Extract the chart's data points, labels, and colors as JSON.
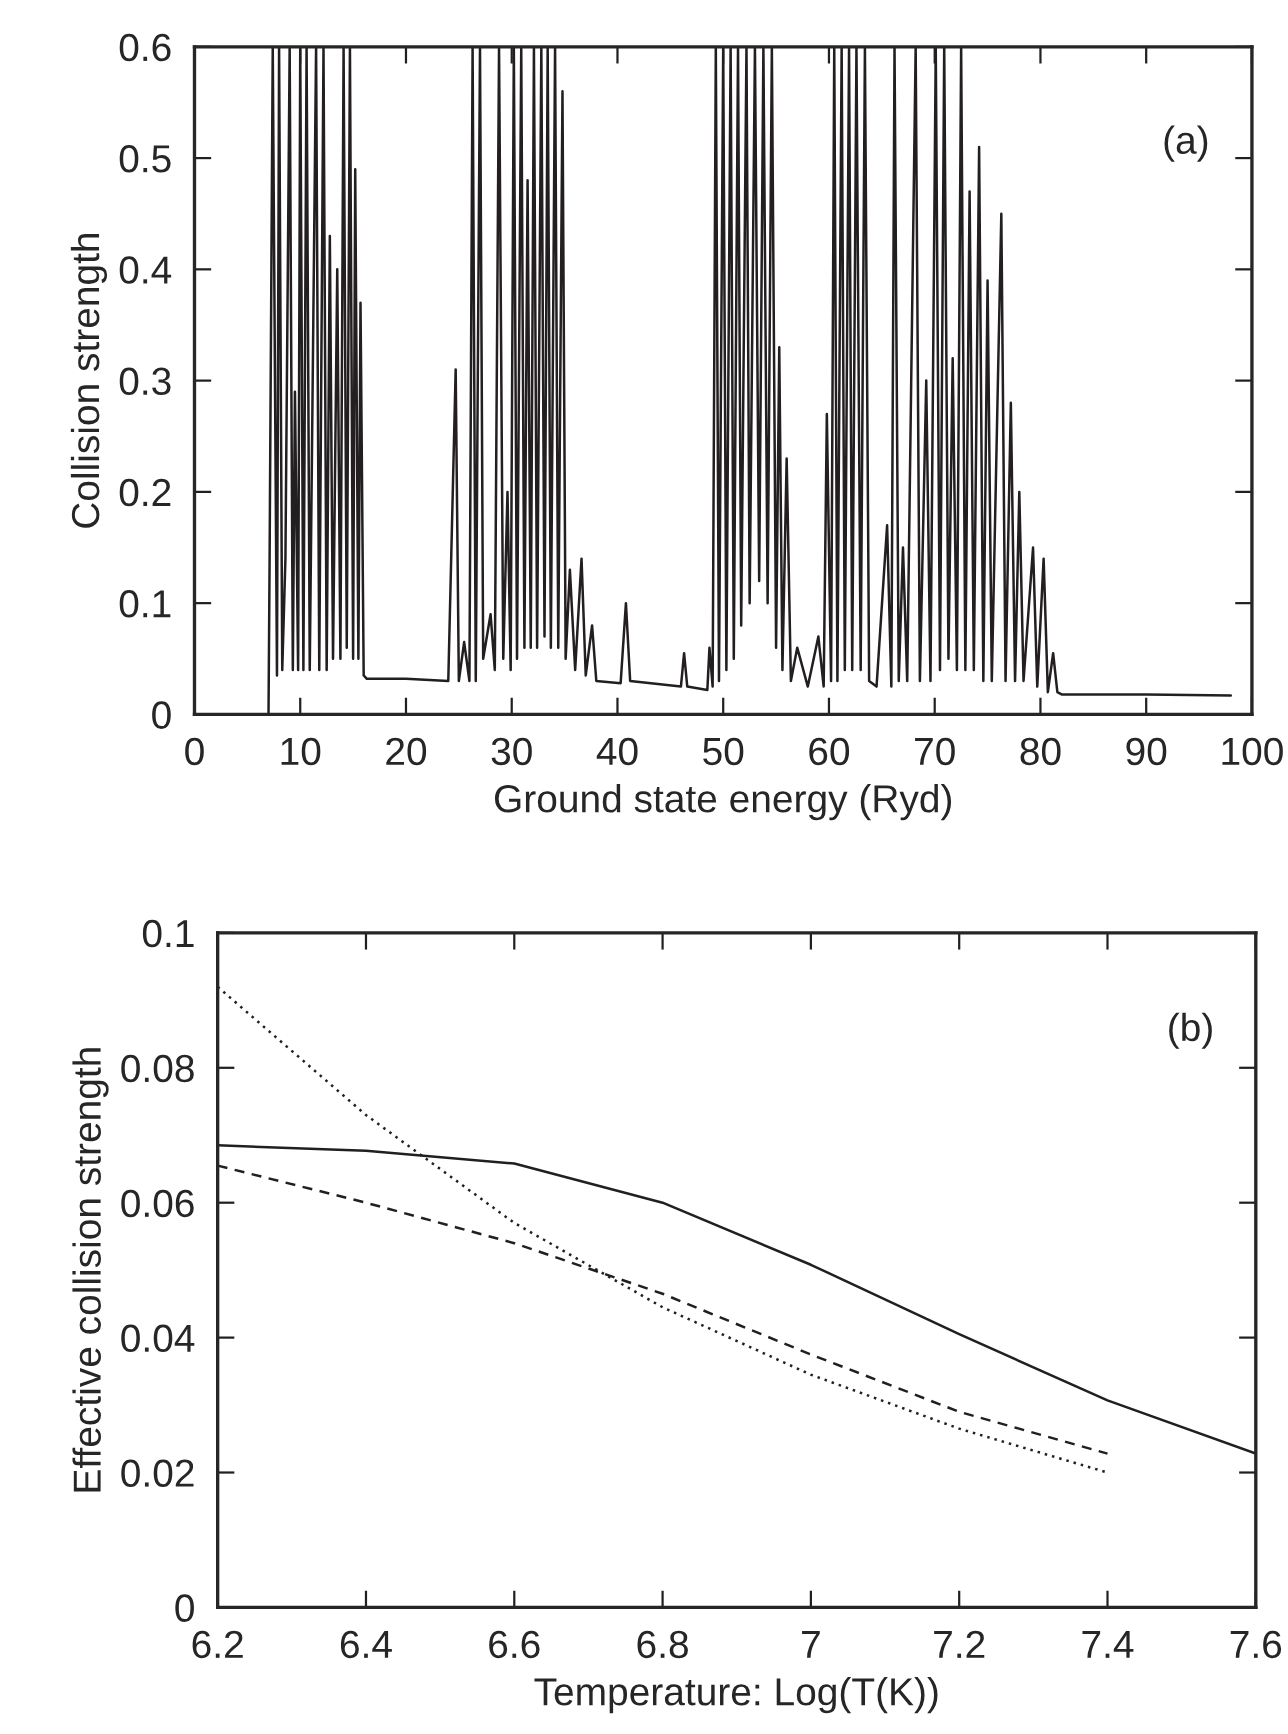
{
  "chart_data": [
    {
      "type": "line",
      "xlabel": "Ground state energy (Ryd)",
      "ylabel": "Collision strength",
      "annotations": [
        "(a)"
      ],
      "xlim": [
        0,
        100
      ],
      "ylim": [
        0,
        0.6
      ],
      "xticks": [
        0,
        10,
        20,
        30,
        40,
        50,
        60,
        70,
        80,
        90,
        100
      ],
      "yticks": [
        0,
        0.1,
        0.2,
        0.3,
        0.4,
        0.5,
        0.6
      ],
      "series": [
        {
          "color": "#231f20",
          "line_style": "solid",
          "x": [
            7.0,
            7.1,
            7.4,
            7.8,
            8.0,
            8.3,
            8.6,
            9.0,
            9.3,
            9.5,
            9.8,
            10.0,
            10.3,
            10.6,
            10.9,
            11.5,
            11.8,
            12.2,
            12.5,
            12.8,
            13.1,
            13.5,
            13.8,
            14.1,
            14.4,
            14.7,
            15.0,
            15.2,
            15.5,
            15.7,
            16.0,
            16.3,
            20,
            24,
            24.7,
            25,
            25.5,
            26,
            26.3,
            26.6,
            27,
            27.3,
            28,
            28.4,
            28.8,
            29.2,
            29.6,
            29.9,
            30.2,
            30.5,
            30.9,
            31.2,
            31.5,
            31.8,
            32.1,
            32.4,
            32.8,
            33.1,
            33.4,
            33.7,
            34.1,
            34.4,
            34.8,
            35.1,
            35.5,
            36,
            36.6,
            37,
            37.6,
            38,
            40.3,
            40.8,
            41.2,
            46,
            46.3,
            46.6,
            48.5,
            48.7,
            49.0,
            49.3,
            49.6,
            50,
            50.3,
            50.7,
            51,
            51.4,
            51.7,
            52.2,
            52.5,
            53,
            53.4,
            53.8,
            54.2,
            54.6,
            55,
            55.3,
            55.6,
            56,
            56.4,
            57,
            58,
            59,
            59.5,
            59.8,
            60.2,
            60.5,
            60.8,
            61.2,
            61.5,
            61.9,
            62.2,
            62.6,
            63,
            63.4,
            63.8,
            64.5,
            65.5,
            65.9,
            66.2,
            66.6,
            67,
            67.4,
            68.2,
            68.6,
            69.2,
            69.6,
            70.1,
            70.5,
            70.9,
            71.3,
            71.7,
            72.1,
            72.5,
            72.9,
            73.3,
            73.7,
            74.2,
            74.6,
            75,
            75.4,
            76.3,
            76.7,
            77.2,
            77.6,
            78,
            78.4,
            79.3,
            79.7,
            80.3,
            80.7,
            81.2,
            81.6,
            82,
            90,
            98
          ],
          "values": [
            0,
            0.135,
            0.6,
            0.035,
            0.6,
            0.04,
            0.14,
            0.6,
            0.04,
            0.29,
            0.04,
            0.6,
            0.04,
            0.6,
            0.04,
            0.6,
            0.04,
            0.6,
            0.04,
            0.43,
            0.05,
            0.4,
            0.05,
            0.6,
            0.06,
            0.6,
            0.05,
            0.49,
            0.05,
            0.37,
            0.035,
            0.032,
            0.032,
            0.03,
            0.31,
            0.03,
            0.065,
            0.03,
            0.6,
            0.03,
            0.6,
            0.05,
            0.09,
            0.04,
            0.6,
            0.05,
            0.2,
            0.04,
            0.6,
            0.05,
            0.6,
            0.06,
            0.48,
            0.06,
            0.6,
            0.06,
            0.6,
            0.07,
            0.6,
            0.06,
            0.6,
            0.06,
            0.56,
            0.05,
            0.13,
            0.04,
            0.14,
            0.035,
            0.08,
            0.03,
            0.028,
            0.1,
            0.03,
            0.025,
            0.055,
            0.025,
            0.022,
            0.06,
            0.025,
            0.6,
            0.03,
            0.6,
            0.04,
            0.6,
            0.05,
            0.6,
            0.08,
            0.6,
            0.1,
            0.6,
            0.12,
            0.6,
            0.1,
            0.6,
            0.06,
            0.33,
            0.04,
            0.23,
            0.03,
            0.06,
            0.025,
            0.07,
            0.025,
            0.27,
            0.03,
            0.6,
            0.03,
            0.6,
            0.04,
            0.6,
            0.04,
            0.6,
            0.04,
            0.6,
            0.03,
            0.025,
            0.17,
            0.025,
            0.6,
            0.03,
            0.15,
            0.03,
            0.6,
            0.03,
            0.3,
            0.03,
            0.6,
            0.04,
            0.6,
            0.05,
            0.32,
            0.04,
            0.6,
            0.04,
            0.47,
            0.04,
            0.51,
            0.03,
            0.39,
            0.03,
            0.45,
            0.03,
            0.28,
            0.03,
            0.2,
            0.03,
            0.15,
            0.025,
            0.14,
            0.02,
            0.055,
            0.02,
            0.018,
            0.018,
            0.017
          ]
        }
      ]
    },
    {
      "type": "line",
      "xlabel": "Temperature: Log(T(K))",
      "ylabel": "Effective collision strength",
      "annotations": [
        "(b)"
      ],
      "xlim": [
        6.2,
        7.6
      ],
      "ylim": [
        0,
        0.1
      ],
      "xticks": [
        6.2,
        6.4,
        6.6,
        6.8,
        7,
        7.2,
        7.4,
        7.6
      ],
      "yticks": [
        0,
        0.02,
        0.04,
        0.06,
        0.08,
        0.1
      ],
      "series": [
        {
          "color": "#231f20",
          "line_style": "solid",
          "x": [
            6.2,
            6.4,
            6.6,
            6.8,
            7.0,
            7.2,
            7.4,
            7.6
          ],
          "values": [
            0.0685,
            0.0677,
            0.0658,
            0.06,
            0.0508,
            0.0405,
            0.0307,
            0.0228
          ]
        },
        {
          "color": "#231f20",
          "line_style": "dashed",
          "x": [
            6.2,
            6.4,
            6.6,
            6.8,
            7.0,
            7.2,
            7.4
          ],
          "values": [
            0.0655,
            0.06,
            0.054,
            0.0465,
            0.0375,
            0.029,
            0.0228
          ]
        },
        {
          "color": "#231f20",
          "line_style": "dotted",
          "x": [
            6.2,
            6.4,
            6.6,
            6.8,
            7.0,
            7.2,
            7.4
          ],
          "values": [
            0.092,
            0.073,
            0.057,
            0.0445,
            0.0345,
            0.0265,
            0.02
          ]
        }
      ]
    }
  ]
}
